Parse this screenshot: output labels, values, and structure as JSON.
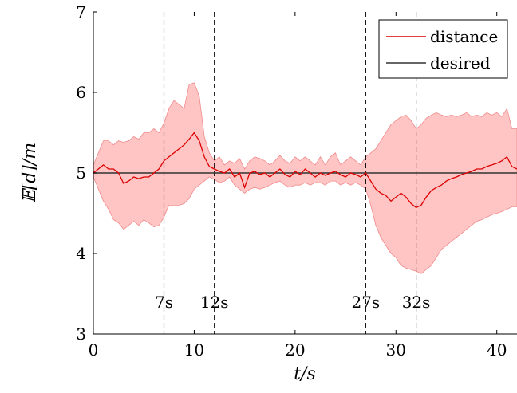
{
  "chart_data": {
    "type": "line",
    "xlabel": "t/s",
    "ylabel": "𝔼[d]/m",
    "xlim": [
      0,
      42
    ],
    "ylim": [
      3,
      7
    ],
    "xticks": [
      0,
      10,
      20,
      30,
      40
    ],
    "yticks": [
      3,
      4,
      5,
      6,
      7
    ],
    "grid": false,
    "legend_position": "top-right",
    "colors": {
      "distance": "#dd0000",
      "band": "#ffc4c4",
      "band_edge": "#f08a8a",
      "desired": "#333333"
    },
    "series": [
      {
        "name": "distance",
        "x": [
          0,
          0.5,
          1,
          1.5,
          2,
          2.5,
          3,
          3.5,
          4,
          4.5,
          5,
          5.5,
          6,
          6.5,
          7,
          7.5,
          8,
          8.5,
          9,
          9.5,
          10,
          10.5,
          11,
          11.5,
          12,
          12.5,
          13,
          13.5,
          14,
          14.5,
          15,
          15.5,
          16,
          16.5,
          17,
          17.5,
          18,
          18.5,
          19,
          19.5,
          20,
          20.5,
          21,
          21.5,
          22,
          22.5,
          23,
          23.5,
          24,
          24.5,
          25,
          25.5,
          26,
          26.5,
          27,
          27.5,
          28,
          28.5,
          29,
          29.5,
          30,
          30.5,
          31,
          31.5,
          32,
          32.5,
          33,
          33.5,
          34,
          34.5,
          35,
          35.5,
          36,
          36.5,
          37,
          37.5,
          38,
          38.5,
          39,
          39.5,
          40,
          40.5,
          41,
          41.5,
          42
        ],
        "values": [
          5.0,
          5.05,
          5.1,
          5.05,
          5.05,
          5.0,
          4.87,
          4.9,
          4.95,
          4.93,
          4.95,
          4.95,
          5.0,
          5.05,
          5.15,
          5.2,
          5.25,
          5.3,
          5.35,
          5.42,
          5.5,
          5.4,
          5.2,
          5.08,
          5.05,
          5.02,
          5.0,
          5.05,
          4.95,
          5.0,
          4.82,
          5.0,
          5.02,
          4.98,
          5.0,
          4.95,
          5.0,
          5.05,
          4.98,
          4.95,
          5.02,
          4.98,
          5.05,
          5.0,
          4.95,
          5.0,
          4.97,
          5.0,
          5.02,
          4.98,
          4.95,
          5.0,
          4.98,
          4.95,
          5.0,
          4.9,
          4.8,
          4.75,
          4.72,
          4.65,
          4.7,
          4.75,
          4.7,
          4.62,
          4.57,
          4.6,
          4.7,
          4.78,
          4.82,
          4.85,
          4.9,
          4.93,
          4.95,
          4.98,
          5.0,
          5.02,
          5.05,
          5.05,
          5.08,
          5.1,
          5.12,
          5.15,
          5.2,
          5.08,
          5.05
        ]
      },
      {
        "name": "desired",
        "x": [
          0,
          42
        ],
        "values": [
          5.0,
          5.0
        ]
      }
    ],
    "band": {
      "x": [
        0,
        0.5,
        1,
        1.5,
        2,
        2.5,
        3,
        3.5,
        4,
        4.5,
        5,
        5.5,
        6,
        6.5,
        7,
        7.5,
        8,
        8.5,
        9,
        9.5,
        10,
        10.5,
        11,
        11.5,
        12,
        12.5,
        13,
        13.5,
        14,
        14.5,
        15,
        15.5,
        16,
        16.5,
        17,
        17.5,
        18,
        18.5,
        19,
        19.5,
        20,
        20.5,
        21,
        21.5,
        22,
        22.5,
        23,
        23.5,
        24,
        24.5,
        25,
        25.5,
        26,
        26.5,
        27,
        27.5,
        28,
        28.5,
        29,
        29.5,
        30,
        30.5,
        31,
        31.5,
        32,
        32.5,
        33,
        33.5,
        34,
        34.5,
        35,
        35.5,
        36,
        36.5,
        37,
        37.5,
        38,
        38.5,
        39,
        39.5,
        40,
        40.5,
        41,
        41.5,
        42
      ],
      "upper": [
        5.1,
        5.25,
        5.4,
        5.4,
        5.35,
        5.4,
        5.38,
        5.4,
        5.45,
        5.42,
        5.5,
        5.5,
        5.55,
        5.5,
        5.62,
        5.8,
        5.9,
        5.85,
        5.8,
        6.1,
        6.12,
        5.95,
        5.45,
        5.25,
        5.15,
        5.2,
        5.1,
        5.15,
        5.12,
        5.18,
        5.05,
        5.15,
        5.2,
        5.18,
        5.15,
        5.1,
        5.15,
        5.22,
        5.15,
        5.12,
        5.2,
        5.15,
        5.2,
        5.15,
        5.1,
        5.2,
        5.1,
        5.2,
        5.25,
        5.1,
        5.15,
        5.2,
        5.15,
        5.1,
        5.2,
        5.25,
        5.3,
        5.4,
        5.5,
        5.6,
        5.65,
        5.7,
        5.72,
        5.65,
        5.55,
        5.6,
        5.68,
        5.72,
        5.75,
        5.72,
        5.7,
        5.72,
        5.7,
        5.72,
        5.75,
        5.7,
        5.72,
        5.7,
        5.75,
        5.72,
        5.75,
        5.7,
        5.8,
        5.55,
        5.55
      ],
      "lower": [
        4.95,
        4.8,
        4.65,
        4.55,
        4.42,
        4.38,
        4.3,
        4.35,
        4.4,
        4.35,
        4.42,
        4.38,
        4.33,
        4.35,
        4.45,
        4.6,
        4.6,
        4.6,
        4.62,
        4.68,
        4.8,
        4.85,
        4.9,
        4.95,
        4.92,
        4.88,
        4.9,
        4.95,
        4.85,
        4.8,
        4.75,
        4.8,
        4.82,
        4.8,
        4.82,
        4.85,
        4.88,
        4.9,
        4.85,
        4.82,
        4.85,
        4.85,
        4.88,
        4.85,
        4.88,
        4.88,
        4.85,
        4.9,
        4.9,
        4.85,
        4.88,
        4.85,
        4.88,
        4.85,
        4.8,
        4.6,
        4.35,
        4.2,
        4.1,
        4.0,
        3.95,
        3.85,
        3.82,
        3.8,
        3.78,
        3.75,
        3.8,
        3.85,
        3.95,
        4.05,
        4.1,
        4.15,
        4.2,
        4.25,
        4.3,
        4.35,
        4.4,
        4.42,
        4.45,
        4.48,
        4.5,
        4.52,
        4.55,
        4.58,
        4.58
      ]
    },
    "vlines": [
      {
        "x": 7,
        "label": "7s"
      },
      {
        "x": 12,
        "label": "12s"
      },
      {
        "x": 27,
        "label": "27s"
      },
      {
        "x": 32,
        "label": "32s"
      }
    ]
  }
}
